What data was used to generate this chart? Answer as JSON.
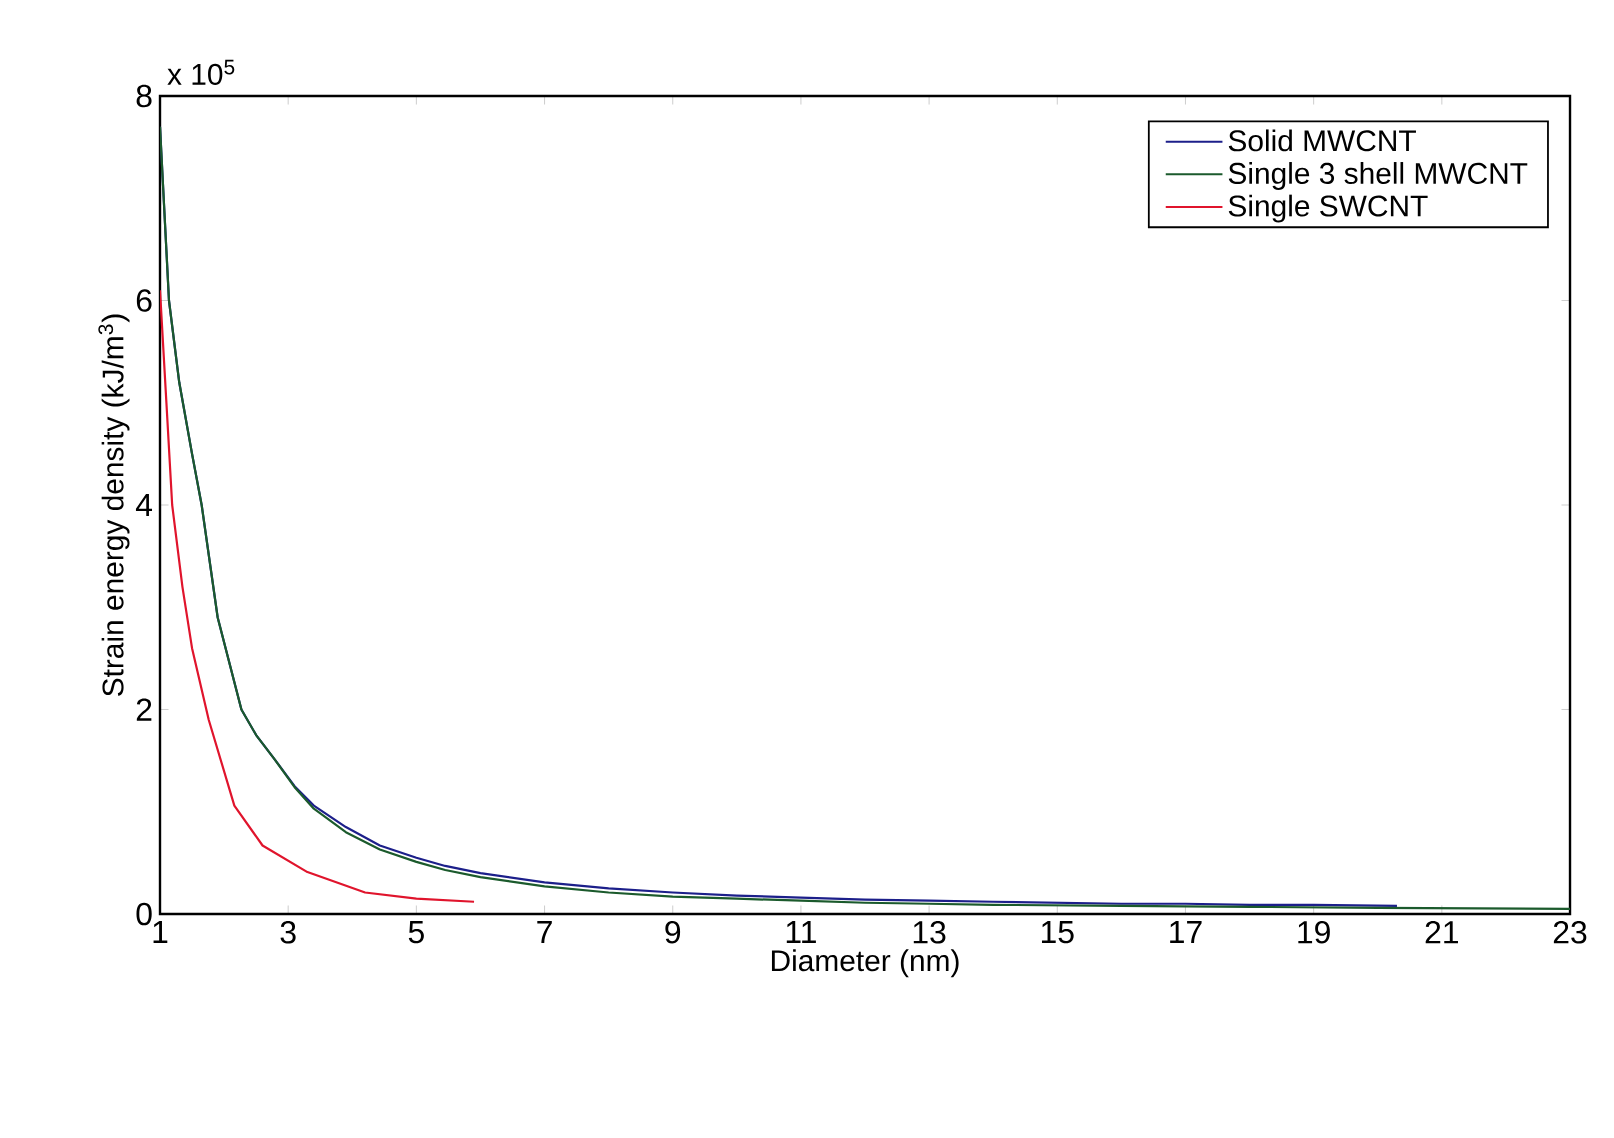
{
  "chart_data": {
    "type": "line",
    "xlabel": "Diameter (nm)",
    "ylabel": "Strain energy density (kJ/m$^{3}$)",
    "annotations": [
      "x 10$^{5}$"
    ],
    "xlim": [
      1,
      23
    ],
    "xticks": [
      1,
      3,
      5,
      7,
      9,
      11,
      13,
      15,
      17,
      19,
      21,
      23
    ],
    "ylim": [
      0,
      8
    ],
    "yticks": [
      0,
      2,
      4,
      6,
      8
    ],
    "legend": "top right",
    "grid": false,
    "marker": "none",
    "line_style": "solid",
    "series": [
      {
        "name": "Solid MWCNT",
        "color": "#1c1f8a",
        "x": [
          1,
          1.14,
          1.3,
          1.5,
          1.65,
          1.9,
          2.27,
          2.5,
          2.78,
          3.1,
          3.4,
          3.9,
          4.43,
          5,
          5.45,
          6,
          7,
          8,
          9,
          10,
          11,
          12,
          13,
          14,
          15,
          16,
          17,
          18,
          19,
          20.3
        ],
        "values": [
          7.7,
          6.0,
          5.2,
          4.5,
          4.0,
          2.9,
          2.0,
          1.75,
          1.52,
          1.25,
          1.06,
          0.85,
          0.67,
          0.55,
          0.47,
          0.4,
          0.31,
          0.25,
          0.21,
          0.18,
          0.16,
          0.14,
          0.13,
          0.12,
          0.11,
          0.1,
          0.1,
          0.09,
          0.09,
          0.08
        ]
      },
      {
        "name": "Single 3 shell MWCNT",
        "color": "#1b5a2c",
        "x": [
          1,
          1.14,
          1.3,
          1.5,
          1.65,
          1.9,
          2.27,
          2.5,
          2.78,
          3.1,
          3.4,
          3.9,
          4.43,
          5,
          5.45,
          6,
          7,
          8,
          9,
          10,
          11,
          12,
          13,
          14,
          16,
          18,
          20,
          23
        ],
        "values": [
          7.7,
          6.0,
          5.2,
          4.5,
          4.0,
          2.9,
          2.0,
          1.75,
          1.52,
          1.24,
          1.03,
          0.8,
          0.63,
          0.51,
          0.43,
          0.36,
          0.27,
          0.21,
          0.17,
          0.15,
          0.13,
          0.11,
          0.1,
          0.09,
          0.08,
          0.07,
          0.06,
          0.05
        ]
      },
      {
        "name": "Single SWCNT",
        "color": "#e0142c",
        "x": [
          1,
          1.1,
          1.19,
          1.35,
          1.5,
          1.76,
          2.16,
          2.6,
          3.3,
          4.2,
          5,
          5.9
        ],
        "values": [
          6.1,
          5.0,
          4.0,
          3.2,
          2.6,
          1.9,
          1.06,
          0.67,
          0.41,
          0.21,
          0.15,
          0.12
        ]
      }
    ]
  }
}
